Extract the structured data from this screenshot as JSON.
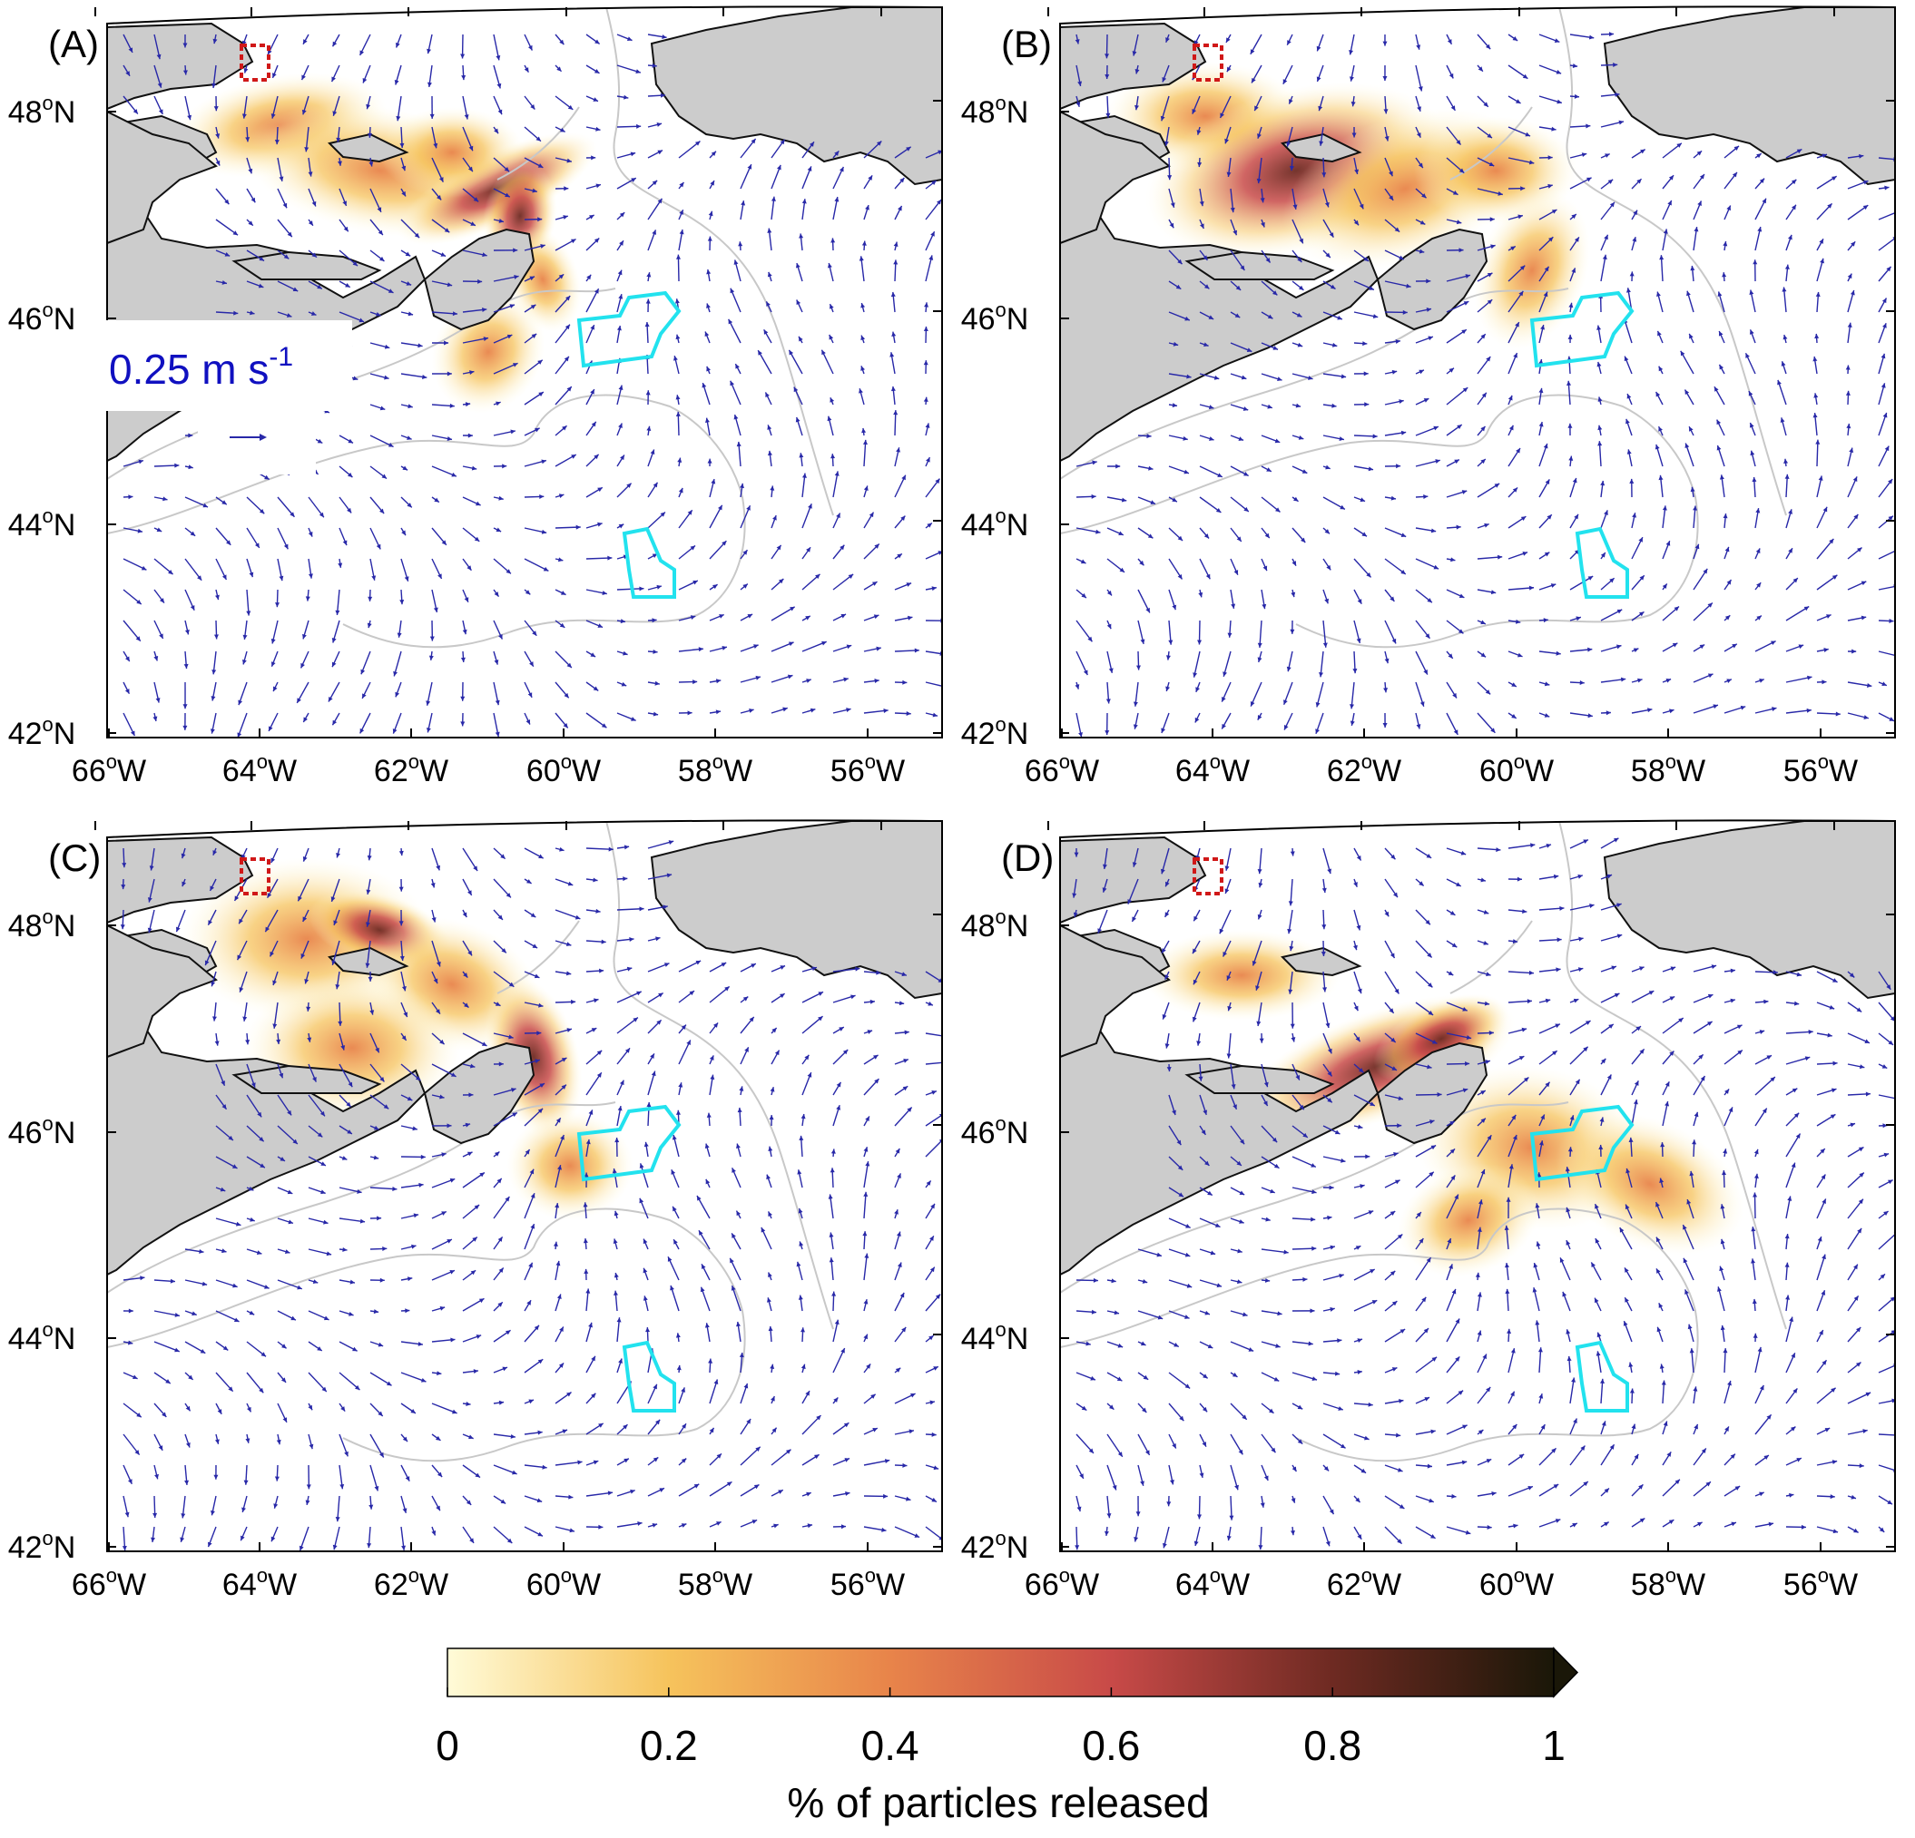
{
  "figure": {
    "panels": [
      {
        "id": "A",
        "label": "(A)",
        "legend": {
          "value": "0.25 m s",
          "exponent": "-1"
        }
      },
      {
        "id": "B",
        "label": "(B)"
      },
      {
        "id": "C",
        "label": "(C)"
      },
      {
        "id": "D",
        "label": "(D)"
      }
    ],
    "lat_ticks": [
      {
        "deg": "42",
        "suffix": "N"
      },
      {
        "deg": "44",
        "suffix": "N"
      },
      {
        "deg": "46",
        "suffix": "N"
      },
      {
        "deg": "48",
        "suffix": "N"
      }
    ],
    "lon_ticks": [
      {
        "deg": "66",
        "suffix": "W"
      },
      {
        "deg": "64",
        "suffix": "W"
      },
      {
        "deg": "62",
        "suffix": "W"
      },
      {
        "deg": "60",
        "suffix": "W"
      },
      {
        "deg": "58",
        "suffix": "W"
      },
      {
        "deg": "56",
        "suffix": "W"
      }
    ],
    "degree_symbol": "o",
    "colorbar": {
      "label": "% of particles released",
      "ticks": [
        "0",
        "0.2",
        "0.4",
        "0.6",
        "0.8",
        "1"
      ],
      "min": 0,
      "max": 1,
      "extend": "max",
      "colors": [
        "#fffbd8",
        "#f6c35c",
        "#e8844a",
        "#c84a48",
        "#6e2a22",
        "#1a1708"
      ]
    },
    "colors": {
      "land": "#cccccc",
      "arrows": "#2828a8",
      "isobath": "#c8c8c8",
      "protected_area": "#22e2ee",
      "release_site": "#d01818"
    }
  }
}
